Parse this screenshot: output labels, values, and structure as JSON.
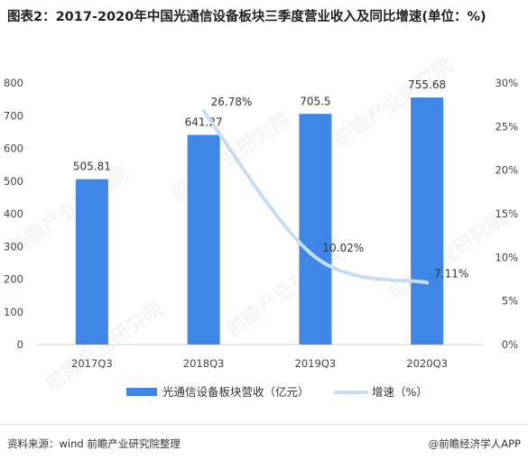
{
  "title": "图表2：2017-2020年中国光通信设备板块三季度营业收入及同比增速(单位：%)",
  "watermark": "前瞻产业研究院",
  "footer": {
    "source": "资料来源：wind 前瞻产业研究院整理",
    "credit": "@前瞻经济学人APP"
  },
  "chart_data": {
    "type": "bar",
    "categories": [
      "2017Q3",
      "2018Q3",
      "2019Q3",
      "2020Q3"
    ],
    "series": [
      {
        "name": "光通信设备板块营收（亿元）",
        "type": "bar",
        "axis": "left",
        "color": "#3f86e6",
        "values": [
          505.81,
          641.27,
          705.5,
          755.68
        ],
        "labels": [
          "505.81",
          "641.27",
          "705.5",
          "755.68"
        ]
      },
      {
        "name": "增速（%）",
        "type": "line",
        "axis": "right",
        "color": "#c5def4",
        "values": [
          null,
          26.78,
          10.02,
          7.11
        ],
        "labels": [
          "",
          "26.78%",
          "10.02%",
          "7.11%"
        ]
      }
    ],
    "y_left": {
      "min": 0,
      "max": 800,
      "ticks": [
        "0",
        "100",
        "200",
        "300",
        "400",
        "500",
        "600",
        "700",
        "800"
      ]
    },
    "y_right": {
      "min": 0,
      "max": 30,
      "ticks": [
        "0%",
        "5%",
        "10%",
        "15%",
        "20%",
        "25%",
        "30%"
      ]
    },
    "grid": false,
    "legend": "bottom"
  }
}
